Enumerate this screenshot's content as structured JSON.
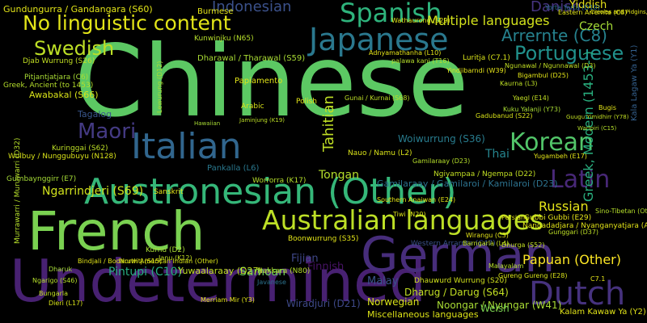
{
  "title": "Language word cloud",
  "words": [
    {
      "text": "Chinese",
      "color": "#5cc863"
    },
    {
      "text": "Undetermined",
      "color": "#482172"
    },
    {
      "text": "French",
      "color": "#7ad151"
    },
    {
      "text": "German",
      "color": "#472d7b"
    },
    {
      "text": "Austronesian (Other)",
      "color": "#35b779"
    },
    {
      "text": "Australian languages",
      "color": "#bddf26"
    },
    {
      "text": "Japanese",
      "color": "#2a788e"
    },
    {
      "text": "Italian",
      "color": "#31668e"
    },
    {
      "text": "Dutch",
      "color": "#46327e"
    },
    {
      "text": "No linguistic content",
      "color": "#e2e418"
    },
    {
      "text": "Spanish",
      "color": "#2eb37c"
    },
    {
      "text": "Korean",
      "color": "#52c569"
    },
    {
      "text": "Latin",
      "color": "#482878"
    },
    {
      "text": "Portuguese",
      "color": "#21918c"
    },
    {
      "text": "Maori",
      "color": "#443a83"
    },
    {
      "text": "Swedish",
      "color": "#bddf26"
    },
    {
      "text": "Arrernte (C8)",
      "color": "#26828e"
    },
    {
      "text": "Multiple languages",
      "color": "#d2e21b"
    },
    {
      "text": "Indonesian",
      "color": "#3b518b"
    },
    {
      "text": "Danish",
      "color": "#463480"
    },
    {
      "text": "Tahitian",
      "color": "#c0df25"
    },
    {
      "text": "Greek, Modern (1453- )",
      "color": "#29af7f"
    },
    {
      "text": "Russian",
      "color": "#e5e419"
    },
    {
      "text": "Papuan (Other)",
      "color": "#fde725"
    },
    {
      "text": "Thai",
      "color": "#25848e"
    },
    {
      "text": "Tongan",
      "color": "#b5de2b"
    },
    {
      "text": "Ngarrindjeri (S69)",
      "color": "#d0e11c"
    },
    {
      "text": "Gamilaraay / Gamilaroi / Kamilaroi (D23)",
      "color": "#2c728e"
    },
    {
      "text": "Pintupi (C10)",
      "color": "#27ad81"
    },
    {
      "text": "Samoan",
      "color": "#6ccd5a"
    },
    {
      "text": "Malay",
      "color": "#3a548c"
    },
    {
      "text": "Fijian",
      "color": "#3f4788"
    },
    {
      "text": "Finnish",
      "color": "#471365"
    },
    {
      "text": "Norwegian",
      "color": "#d8e219"
    },
    {
      "text": "Czech",
      "color": "#a5db36"
    },
    {
      "text": "Yiddish",
      "color": "#e7e419"
    },
    {
      "text": "Dharug / Darug (S64)",
      "color": "#c2df23"
    },
    {
      "text": "Noongar / Nyungar (W41)",
      "color": "#a8db34"
    },
    {
      "text": "Woiwurrung (S36)",
      "color": "#287c8e"
    },
    {
      "text": "Ngarrindjeri (S69) ",
      "color": "#d0e11c"
    },
    {
      "text": "Miscellaneous languages",
      "color": "#dde318"
    },
    {
      "text": "Kalam Kawaw Ya (Y2)",
      "color": "#e2e418"
    },
    {
      "text": "Kala Lagaw Ya (Y1)",
      "color": "#34608d"
    },
    {
      "text": "Gundungurra / Gandangara (S60)",
      "color": "#e2e418"
    },
    {
      "text": "Burmese",
      "color": "#e5e419"
    },
    {
      "text": "Kunwinjku (N65)",
      "color": "#b5de2b"
    },
    {
      "text": "Awabakal (S66)",
      "color": "#d8e219"
    },
    {
      "text": "Tagalog",
      "color": "#39568c"
    },
    {
      "text": "Djab Wurrung (S26)",
      "color": "#c2df23"
    },
    {
      "text": "Pitjantjatjara (C6)",
      "color": "#a8db34"
    },
    {
      "text": "Greek, Ancient (to 1453)",
      "color": "#b5de2b"
    },
    {
      "text": "Kuringgai (S62)",
      "color": "#bddf26"
    },
    {
      "text": "Wulbuy / Nunggubuyu (N128)",
      "color": "#d8e219"
    },
    {
      "text": "Gumbaynggirr (E7)",
      "color": "#a5db36"
    },
    {
      "text": "Sanskrit",
      "color": "#e5e419"
    },
    {
      "text": "Pankalla (L6)",
      "color": "#2a788e"
    },
    {
      "text": "Worrorra (K17)",
      "color": "#b5de2b"
    },
    {
      "text": "Kurnu (D2)",
      "color": "#a8db34"
    },
    {
      "text": "Bindjali / Bodaruwitj (S15)",
      "color": "#e2e418"
    },
    {
      "text": "Yuwaalaraay (D27)",
      "color": "#c2df23"
    },
    {
      "text": "Boonwurrung (S35)",
      "color": "#e2e418"
    },
    {
      "text": "Nakkara (N80)",
      "color": "#b5de2b"
    },
    {
      "text": "Dhauwurd Wurrung (S20)",
      "color": "#d0e11c"
    },
    {
      "text": "Gubbi Gubbi (E29)",
      "color": "#e5e419"
    },
    {
      "text": "Nangadadjara / Nyanganyatjara (A7)",
      "color": "#e2e418"
    },
    {
      "text": "Wiradjuri (D21)",
      "color": "#3e4989"
    },
    {
      "text": "Welsh",
      "color": "#7ad151"
    },
    {
      "text": "Western Arrarnta (C47)",
      "color": "#3b528b"
    },
    {
      "text": "Ngiyampaa / Ngempa (D22)",
      "color": "#c2df23"
    },
    {
      "text": "Nauo / Namu (L2)",
      "color": "#d8e219"
    },
    {
      "text": "Polish",
      "color": "#e2e418"
    },
    {
      "text": "Tahitian ",
      "color": "#c0df25"
    },
    {
      "text": "Luritja (C7.1)",
      "color": "#d8e219"
    },
    {
      "text": "palawa kani (T16)",
      "color": "#b5de2b"
    },
    {
      "text": "Dharawal / Tharawal (S59)",
      "color": "#a8db34"
    },
    {
      "text": "Papiamento",
      "color": "#e2e418"
    },
    {
      "text": "Arabic",
      "color": "#d8e219"
    },
    {
      "text": "Ngunawal / Ngunnawal (D3)",
      "color": "#c2df23"
    },
    {
      "text": "Yorta Yorta (D10)",
      "color": "#2c728e"
    },
    {
      "text": "Eastern Arrernte (C8)",
      "color": "#e2e418"
    },
    {
      "text": "Kaurna (L3)",
      "color": "#bddf26"
    },
    {
      "text": "Murrawarri / Muruwarri (D32)",
      "color": "#b5de2b"
    },
    {
      "text": "Dharuk",
      "color": "#a5db36"
    },
    {
      "text": "Merriam Mir (Y3)",
      "color": "#e2e418"
    },
    {
      "text": "Janu (K12)",
      "color": "#c2df23"
    },
    {
      "text": "North American Indian (Other)",
      "color": "#d8e219"
    },
    {
      "text": "Javanese",
      "color": "#2c728e"
    },
    {
      "text": "Malayalam",
      "color": "#b5de2b"
    },
    {
      "text": "Lewurung (D12)",
      "color": "#a8db34"
    },
    {
      "text": "Bigambul (D25)",
      "color": "#e2e418"
    },
    {
      "text": "Yaegl (E14)",
      "color": "#c2df23"
    },
    {
      "text": "Gadubanud (S22)",
      "color": "#d8e219"
    },
    {
      "text": "Adnyamathanha (L10)",
      "color": "#e5e419"
    },
    {
      "text": "Woiwurrung (S36) ",
      "color": "#287c8e"
    },
    {
      "text": "Ngarigo (S46)",
      "color": "#b5de2b"
    },
    {
      "text": "Southern Anaiwan (E24)",
      "color": "#e2e418"
    },
    {
      "text": "Barngarla (L4)",
      "color": "#c2df23"
    },
    {
      "text": "Gureng Gureng (E28)",
      "color": "#d8e219"
    },
    {
      "text": "Wathaurong (S29)",
      "color": "#e2e418"
    },
    {
      "text": "Gunai / Kurnai (S68)",
      "color": "#bddf26"
    },
    {
      "text": "Yindjibarndi (W39)",
      "color": "#e5e419"
    },
    {
      "text": "Gamilaraay (D23)",
      "color": "#b5de2b"
    },
    {
      "text": "Kuku Yalanji (Y73)",
      "color": "#a8db34"
    },
    {
      "text": "Persian",
      "color": "#e2e418"
    },
    {
      "text": "Bungarla",
      "color": "#c2df23"
    },
    {
      "text": "Dieri (L17)",
      "color": "#d8e219"
    },
    {
      "text": "Gunggari (D37)",
      "color": "#bddf26"
    },
    {
      "text": "Wirangu (C3)",
      "color": "#e5e419"
    },
    {
      "text": "Yugambeh (E17)",
      "color": "#e2e418"
    },
    {
      "text": "Sino-Tibetan (Other)",
      "color": "#b5de2b"
    },
    {
      "text": "Dhurga (S52)",
      "color": "#c2df23"
    },
    {
      "text": "Tiwi (N20)",
      "color": "#d8e219"
    },
    {
      "text": "Creoles and Pidgins, French-based (Other)",
      "color": "#e2e418"
    },
    {
      "text": "Hawaiian",
      "color": "#a8db34"
    },
    {
      "text": "Jaminjung (K19)",
      "color": "#bddf26"
    },
    {
      "text": "C7.1",
      "color": "#e5e419"
    },
    {
      "text": "Bugis",
      "color": "#e2e418"
    },
    {
      "text": "Warlpiri (C15)",
      "color": "#b5de2b"
    },
    {
      "text": "Guugu Yimidhirr (Y78)",
      "color": "#c2df23"
    }
  ]
}
